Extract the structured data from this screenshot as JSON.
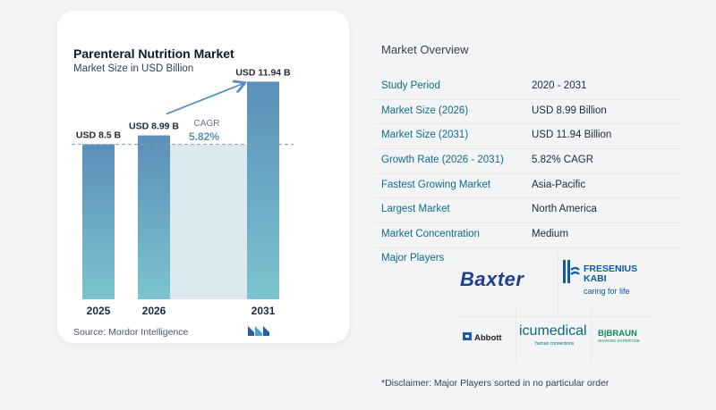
{
  "chart_data": {
    "type": "bar",
    "title": "Parenteral Nutrition Market",
    "subtitle": "Market Size in USD Billion",
    "categories": [
      "2025",
      "2026",
      "2031"
    ],
    "values": [
      8.5,
      8.99,
      11.94
    ],
    "value_labels": [
      "USD 8.5 B",
      "USD 8.99 B",
      "USD 11.94 B"
    ],
    "cagr_label": "CAGR",
    "cagr_value": "5.82%",
    "ylim": [
      0,
      12.5
    ],
    "colors": {
      "bar_top": "#5b8fb8",
      "bar_bottom": "#7cc3cf",
      "shade": "#dde9f1",
      "arrow": "#5b8fb8"
    }
  },
  "source": "Source:  Mordor Intelligence",
  "overview": {
    "title": "Market Overview",
    "rows": [
      {
        "label": "Study Period",
        "value": "2020 - 2031"
      },
      {
        "label": "Market Size (2026)",
        "value": "USD 8.99 Billion"
      },
      {
        "label": "Market Size (2031)",
        "value": "USD 11.94 Billion"
      },
      {
        "label": "Growth Rate (2026 - 2031)",
        "value": "5.82% CAGR"
      },
      {
        "label": "Fastest Growing Market",
        "value": "Asia-Pacific"
      },
      {
        "label": "Largest Market",
        "value": "North America"
      },
      {
        "label": "Market Concentration",
        "value": "Medium"
      }
    ],
    "major_players_label": "Major Players"
  },
  "players": {
    "baxter": "Baxter",
    "fresenius_name_1": "FRESENIUS",
    "fresenius_name_2": "KABI",
    "fresenius_tag": "caring for life",
    "abbott": "Abbott",
    "icu": "icumedical",
    "icu_sub": "human connections",
    "bbraun": "B|BRAUN",
    "bbraun_sub": "SHARING EXPERTISE"
  },
  "disclaimer": "*Disclaimer: Major Players sorted in no particular order"
}
